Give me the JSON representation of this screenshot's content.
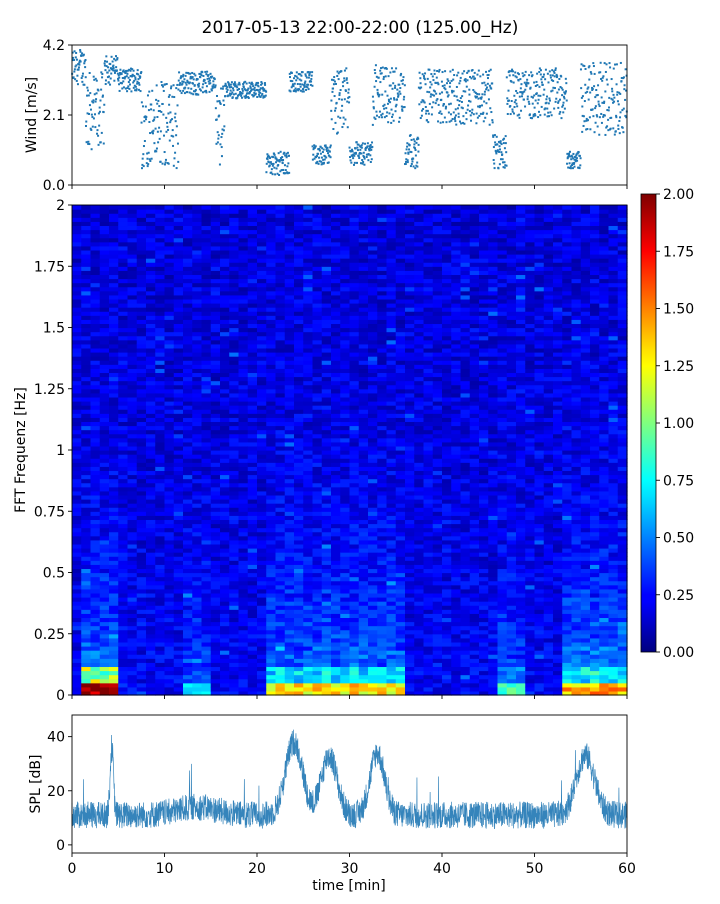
{
  "figure": {
    "title": "2017-05-13 22:00-22:00 (125.00_Hz)"
  },
  "colors": {
    "series": "#1f77b4",
    "axis": "#000000",
    "background": "#ffffff"
  },
  "chart_data": [
    {
      "id": "wind",
      "type": "scatter",
      "ylabel": "Wind [m/s]",
      "xlim": [
        0,
        60
      ],
      "ylim": [
        0,
        4.2
      ],
      "yticks": [
        "0.0",
        "2.1",
        "4.2"
      ],
      "ytick_values": [
        0,
        2.1,
        4.2
      ],
      "grid": false,
      "segments": [
        {
          "x0": 0,
          "x1": 1.5,
          "low": 3.0,
          "high": 4.1
        },
        {
          "x0": 1.5,
          "x1": 3.5,
          "low": 1.0,
          "high": 3.4
        },
        {
          "x0": 3.5,
          "x1": 5.0,
          "low": 3.0,
          "high": 3.9
        },
        {
          "x0": 5.0,
          "x1": 7.5,
          "low": 2.8,
          "high": 3.5
        },
        {
          "x0": 7.5,
          "x1": 11.5,
          "low": 0.5,
          "high": 3.1
        },
        {
          "x0": 11.5,
          "x1": 15.5,
          "low": 2.7,
          "high": 3.4
        },
        {
          "x0": 15.5,
          "x1": 16.5,
          "low": 0.6,
          "high": 3.0
        },
        {
          "x0": 16.5,
          "x1": 21.0,
          "low": 2.6,
          "high": 3.1
        },
        {
          "x0": 21.0,
          "x1": 23.5,
          "low": 0.3,
          "high": 1.0
        },
        {
          "x0": 23.5,
          "x1": 26.0,
          "low": 2.8,
          "high": 3.4
        },
        {
          "x0": 26.0,
          "x1": 28.0,
          "low": 0.6,
          "high": 1.2
        },
        {
          "x0": 28.0,
          "x1": 30.0,
          "low": 1.5,
          "high": 3.5
        },
        {
          "x0": 30.0,
          "x1": 32.5,
          "low": 0.6,
          "high": 1.3
        },
        {
          "x0": 32.5,
          "x1": 36.0,
          "low": 1.8,
          "high": 3.6
        },
        {
          "x0": 36.0,
          "x1": 37.5,
          "low": 0.5,
          "high": 1.5
        },
        {
          "x0": 37.5,
          "x1": 45.5,
          "low": 1.8,
          "high": 3.5
        },
        {
          "x0": 45.5,
          "x1": 47.0,
          "low": 0.5,
          "high": 1.5
        },
        {
          "x0": 47.0,
          "x1": 53.5,
          "low": 2.0,
          "high": 3.5
        },
        {
          "x0": 53.5,
          "x1": 55.0,
          "low": 0.5,
          "high": 1.0
        },
        {
          "x0": 55.0,
          "x1": 60.0,
          "low": 1.5,
          "high": 3.7
        }
      ]
    },
    {
      "id": "spectrogram",
      "type": "heatmap",
      "ylabel": "FFT Frequenz [Hz]",
      "xlim": [
        0,
        60
      ],
      "ylim": [
        0,
        2
      ],
      "yticks": [
        "0",
        "0.25",
        "0.5",
        "0.75",
        "1",
        "1.25",
        "1.5",
        "1.75",
        "2"
      ],
      "ytick_values": [
        0,
        0.25,
        0.5,
        0.75,
        1,
        1.25,
        1.5,
        1.75,
        2
      ],
      "colormap": "jet",
      "color_range": [
        0,
        2
      ],
      "colorbar_ticks": [
        "0.00",
        "0.25",
        "0.50",
        "0.75",
        "1.00",
        "1.25",
        "1.50",
        "1.75",
        "2.00"
      ],
      "colorbar_values": [
        0,
        0.25,
        0.5,
        0.75,
        1,
        1.25,
        1.5,
        1.75,
        2
      ],
      "background_level": 0.2,
      "hot_segments": [
        {
          "x0": 0.8,
          "x1": 5.2,
          "low_band": 2.0,
          "lift": 0.35
        },
        {
          "x0": 12.0,
          "x1": 15.5,
          "low_band": 0.7,
          "lift": 0.15
        },
        {
          "x0": 21.0,
          "x1": 36.5,
          "low_band": 1.3,
          "lift": 0.3
        },
        {
          "x0": 46.0,
          "x1": 49.5,
          "low_band": 0.9,
          "lift": 0.2
        },
        {
          "x0": 53.5,
          "x1": 60.0,
          "low_band": 1.4,
          "lift": 0.35
        }
      ]
    },
    {
      "id": "spl",
      "type": "line",
      "xlabel": "time [min]",
      "ylabel": "SPL [dB]",
      "xlim": [
        0,
        60
      ],
      "ylim": [
        -3,
        48
      ],
      "xticks": [
        "0",
        "10",
        "20",
        "30",
        "40",
        "50",
        "60"
      ],
      "xtick_values": [
        0,
        10,
        20,
        30,
        40,
        50,
        60
      ],
      "yticks": [
        "0",
        "20",
        "40"
      ],
      "ytick_values": [
        0,
        20,
        40
      ],
      "baseline_db": 11,
      "noise_db": 5,
      "peaks": [
        {
          "x": 4.3,
          "height_db": 25,
          "width_min": 0.25
        },
        {
          "x": 13.5,
          "height_db": 3,
          "width_min": 3.0
        },
        {
          "x": 24.0,
          "height_db": 27,
          "width_min": 1.3
        },
        {
          "x": 27.8,
          "height_db": 22,
          "width_min": 1.2
        },
        {
          "x": 33.0,
          "height_db": 23,
          "width_min": 1.1
        },
        {
          "x": 55.5,
          "height_db": 22,
          "width_min": 1.4
        }
      ]
    }
  ]
}
